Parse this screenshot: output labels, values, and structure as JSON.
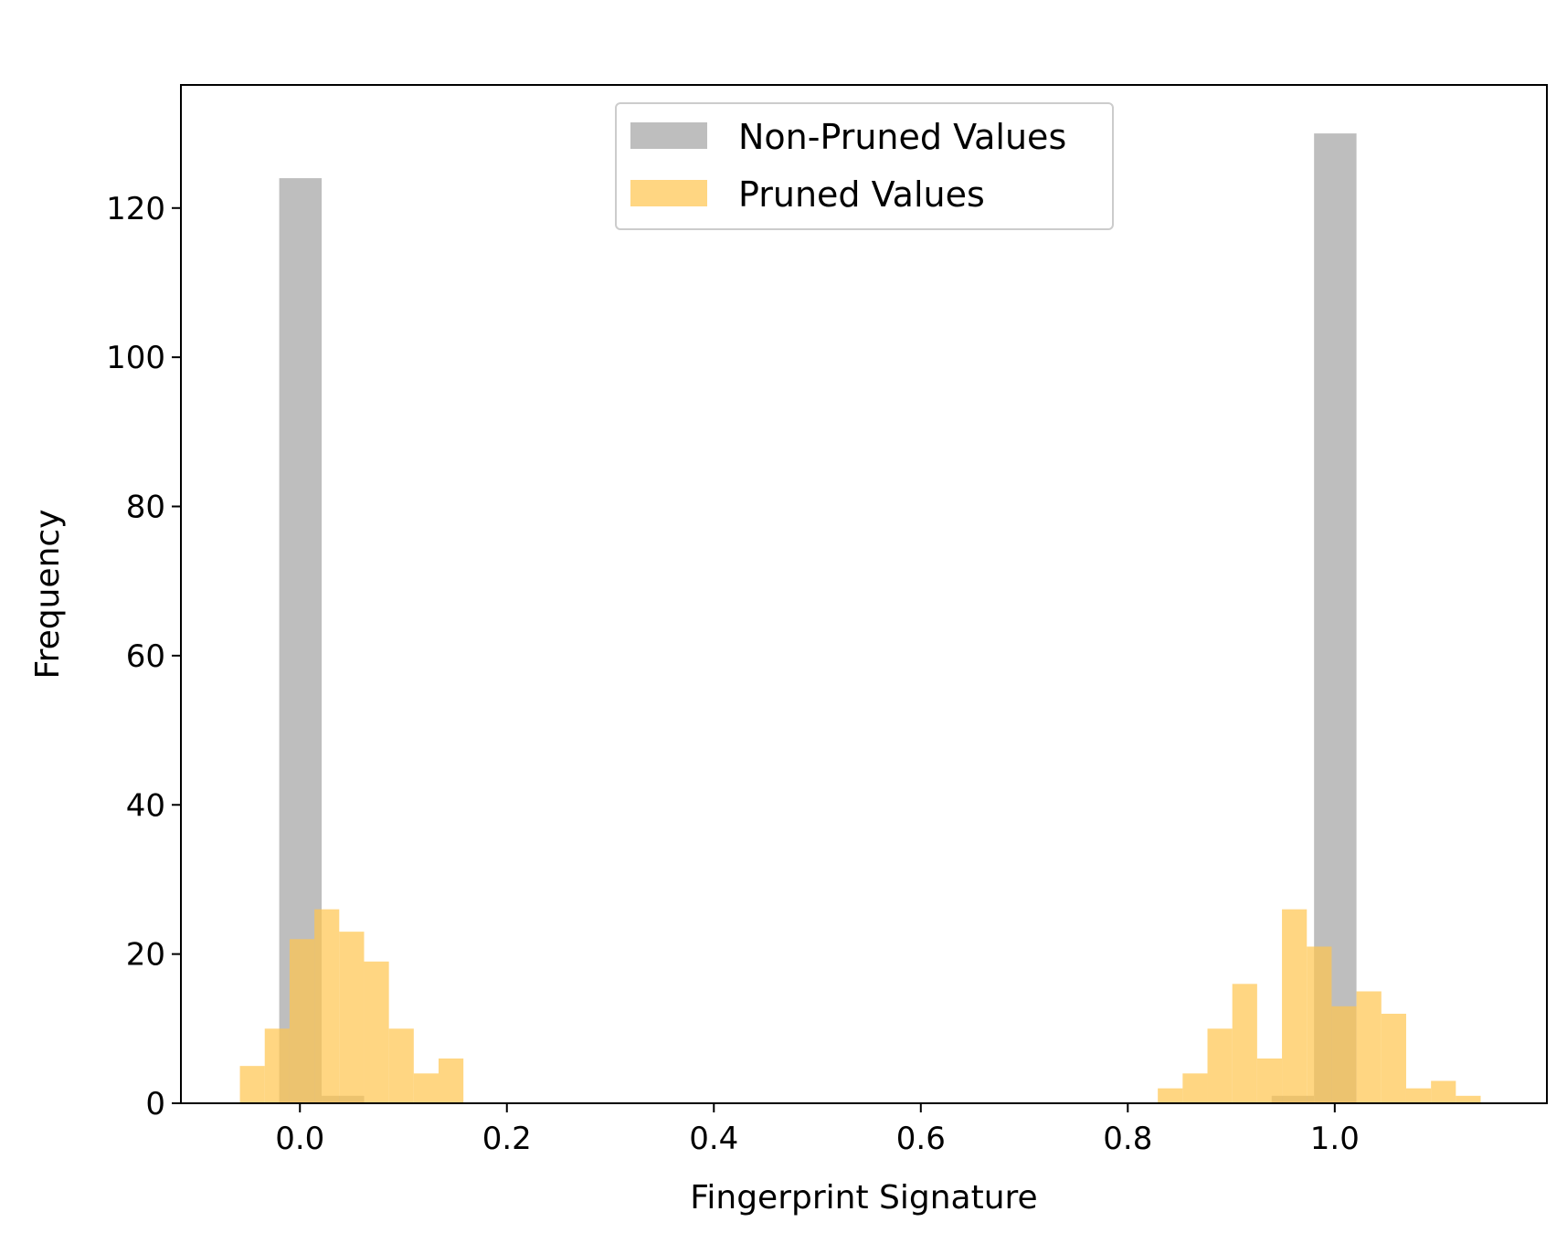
{
  "chart_data": {
    "type": "bar",
    "subtype": "overlapping-histogram",
    "title": "",
    "xlabel": "Fingerprint Signature",
    "ylabel": "Frequency",
    "xlim": [
      -0.115,
      1.205
    ],
    "ylim": [
      0,
      136.5
    ],
    "x_ticks": [
      0.0,
      0.2,
      0.4,
      0.6,
      0.8,
      1.0
    ],
    "x_tick_labels": [
      "0.0",
      "0.2",
      "0.4",
      "0.6",
      "0.8",
      "1.0"
    ],
    "y_ticks": [
      0,
      20,
      40,
      60,
      80,
      100,
      120
    ],
    "y_tick_labels": [
      "0",
      "20",
      "40",
      "60",
      "80",
      "100",
      "120"
    ],
    "grid": false,
    "legend_position": "upper-center",
    "series": [
      {
        "name": "Non-Pruned Values",
        "color": "#bebebe",
        "bins": [
          {
            "x0": -0.02,
            "x1": 0.021,
            "value": 124
          },
          {
            "x0": 0.021,
            "x1": 0.062,
            "value": 1
          },
          {
            "x0": 0.939,
            "x1": 0.98,
            "value": 1
          },
          {
            "x0": 0.98,
            "x1": 1.021,
            "value": 130
          }
        ]
      },
      {
        "name": "Pruned Values",
        "color": "#ffc44d",
        "opacity": 0.7,
        "bins": [
          {
            "x0": -0.058,
            "x1": -0.034,
            "value": 5
          },
          {
            "x0": -0.034,
            "x1": -0.01,
            "value": 10
          },
          {
            "x0": -0.01,
            "x1": 0.014,
            "value": 22
          },
          {
            "x0": 0.014,
            "x1": 0.038,
            "value": 26
          },
          {
            "x0": 0.038,
            "x1": 0.062,
            "value": 23
          },
          {
            "x0": 0.062,
            "x1": 0.086,
            "value": 19
          },
          {
            "x0": 0.086,
            "x1": 0.11,
            "value": 10
          },
          {
            "x0": 0.11,
            "x1": 0.134,
            "value": 4
          },
          {
            "x0": 0.134,
            "x1": 0.158,
            "value": 6
          },
          {
            "x0": 0.829,
            "x1": 0.853,
            "value": 2
          },
          {
            "x0": 0.853,
            "x1": 0.877,
            "value": 4
          },
          {
            "x0": 0.877,
            "x1": 0.901,
            "value": 10
          },
          {
            "x0": 0.901,
            "x1": 0.925,
            "value": 16
          },
          {
            "x0": 0.925,
            "x1": 0.949,
            "value": 6
          },
          {
            "x0": 0.949,
            "x1": 0.973,
            "value": 26
          },
          {
            "x0": 0.973,
            "x1": 0.997,
            "value": 21
          },
          {
            "x0": 0.997,
            "x1": 1.021,
            "value": 13
          },
          {
            "x0": 1.021,
            "x1": 1.045,
            "value": 15
          },
          {
            "x0": 1.045,
            "x1": 1.069,
            "value": 12
          },
          {
            "x0": 1.069,
            "x1": 1.093,
            "value": 2
          },
          {
            "x0": 1.093,
            "x1": 1.117,
            "value": 3
          },
          {
            "x0": 1.117,
            "x1": 1.141,
            "value": 1
          }
        ]
      }
    ]
  }
}
